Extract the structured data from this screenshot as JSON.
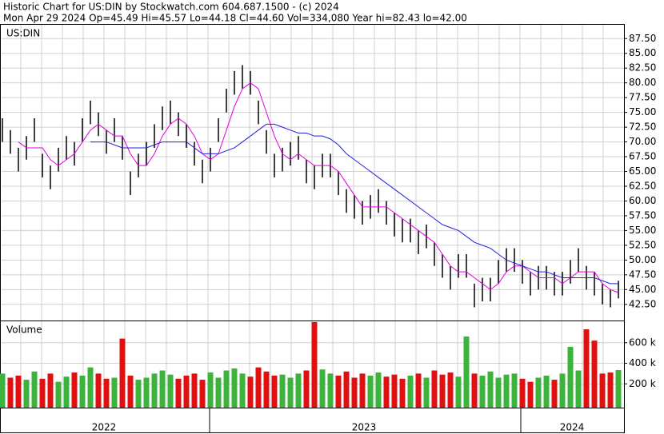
{
  "chart_data": {
    "type": "hilo",
    "title": "Historic Chart for US:DIN by Stockwatch.com 604.687.1500 - (c) 2024",
    "subtitle": "Mon Apr 29 2024  Op=45.49  Hi=45.57  Lo=44.18  Cl=44.60  Vol=334,080  Year hi=82.43  lo=42.00",
    "symbol": "US:DIN",
    "volume_title": "Volume",
    "periods": [
      "2022",
      "2023",
      "2024"
    ],
    "high": [
      74,
      72,
      69,
      71,
      74,
      68,
      66,
      69,
      71,
      70,
      74,
      77,
      75,
      72,
      74,
      71,
      65,
      68,
      70,
      73,
      76,
      77,
      75,
      73,
      70,
      67,
      69,
      74,
      79,
      82,
      83,
      82,
      77,
      72,
      68,
      69,
      70,
      71,
      67,
      66,
      68,
      68,
      65,
      62,
      61,
      60,
      61,
      62,
      60,
      58,
      57,
      57,
      55,
      56,
      53,
      51,
      49,
      51,
      51,
      46,
      47,
      47,
      50,
      52,
      52,
      50,
      48,
      49,
      49,
      48,
      48,
      50,
      52,
      49,
      48,
      46,
      45,
      46.5
    ],
    "low": [
      70,
      68,
      65,
      67,
      70,
      64,
      62,
      65,
      67,
      66,
      70,
      73,
      71,
      68,
      70,
      67,
      61,
      64,
      66,
      69,
      72,
      73,
      71,
      69,
      66,
      63,
      65,
      70,
      75,
      78,
      79,
      78,
      73,
      68,
      64,
      65,
      66,
      67,
      63,
      62,
      64,
      64,
      61,
      58,
      57,
      56,
      57,
      58,
      56,
      54,
      53,
      53,
      51,
      52,
      49,
      47,
      45,
      47,
      47,
      42,
      43,
      43,
      46,
      48,
      48,
      46,
      44,
      45,
      45,
      44,
      44,
      46,
      48,
      45,
      44,
      42.5,
      42,
      43.5
    ],
    "series": [
      {
        "name": "MA short",
        "color": "#e000e0",
        "values": [
          null,
          null,
          70,
          69,
          69,
          69,
          67,
          66,
          67,
          68,
          70,
          72,
          73,
          72,
          71,
          71,
          68,
          66,
          66,
          68,
          71,
          73,
          74,
          73,
          71,
          68,
          67,
          68,
          72,
          76,
          79,
          80,
          79,
          75,
          71,
          68,
          67,
          68,
          67,
          66,
          66,
          66,
          65,
          63,
          61,
          59,
          59,
          59,
          59,
          58,
          57,
          56,
          55,
          54,
          53,
          51,
          49,
          48,
          48,
          47,
          46,
          45,
          46,
          48,
          49,
          49,
          48,
          47,
          47,
          47,
          46,
          47,
          48,
          48,
          48,
          46,
          45,
          44.5
        ]
      },
      {
        "name": "MA long",
        "color": "#2020e0",
        "values": [
          null,
          null,
          null,
          null,
          null,
          null,
          null,
          null,
          null,
          null,
          null,
          70,
          70,
          70,
          69.5,
          69,
          69,
          69,
          69,
          69.5,
          70,
          70,
          70,
          70,
          69,
          68,
          68,
          68,
          68.5,
          69,
          70,
          71,
          72,
          73,
          73,
          72.5,
          72,
          71.5,
          71.5,
          71,
          71,
          70.5,
          69.5,
          68,
          67,
          66,
          65,
          64,
          63,
          62,
          61,
          60,
          59,
          58,
          57,
          56,
          55.5,
          55,
          54,
          53,
          52.5,
          52,
          51,
          50,
          49.5,
          49,
          48.5,
          48,
          48,
          47.5,
          47,
          47,
          47,
          47,
          47,
          46.5,
          46,
          46
        ]
      }
    ],
    "volume": [
      300000,
      260000,
      280000,
      240000,
      320000,
      250000,
      300000,
      220000,
      270000,
      310000,
      280000,
      360000,
      300000,
      250000,
      260000,
      640000,
      280000,
      240000,
      260000,
      300000,
      330000,
      290000,
      250000,
      280000,
      300000,
      240000,
      310000,
      260000,
      330000,
      350000,
      300000,
      270000,
      360000,
      320000,
      280000,
      290000,
      260000,
      300000,
      330000,
      800000,
      340000,
      300000,
      280000,
      320000,
      260000,
      300000,
      280000,
      310000,
      270000,
      290000,
      250000,
      280000,
      300000,
      260000,
      330000,
      290000,
      310000,
      270000,
      660000,
      300000,
      280000,
      320000,
      260000,
      290000,
      300000,
      250000,
      220000,
      260000,
      280000,
      240000,
      300000,
      560000,
      330000,
      730000,
      620000,
      300000,
      310000,
      334080
    ],
    "up_color": "#3cb43c",
    "down_color": "#e01010",
    "ylim": [
      39.9,
      89.7
    ],
    "yticks": [
      {
        "value": 42.5,
        "label": "42.50"
      },
      {
        "value": 45,
        "label": "45.00"
      },
      {
        "value": 47.5,
        "label": "47.50"
      },
      {
        "value": 50,
        "label": "50.00"
      },
      {
        "value": 52.5,
        "label": "52.50"
      },
      {
        "value": 55,
        "label": "55.00"
      },
      {
        "value": 57.5,
        "label": "57.50"
      },
      {
        "value": 60,
        "label": "60.00"
      },
      {
        "value": 62.5,
        "label": "62.50"
      },
      {
        "value": 65,
        "label": "65.00"
      },
      {
        "value": 67.5,
        "label": "67.50"
      },
      {
        "value": 70,
        "label": "70.00"
      },
      {
        "value": 72.5,
        "label": "72.50"
      },
      {
        "value": 75,
        "label": "75.00"
      },
      {
        "value": 77.5,
        "label": "77.50"
      },
      {
        "value": 80,
        "label": "80.00"
      },
      {
        "value": 82.5,
        "label": "82.50"
      },
      {
        "value": 85,
        "label": "85.00"
      },
      {
        "value": 87.5,
        "label": "87.50"
      }
    ],
    "y2lim": [
      0,
      800000
    ],
    "y2ticks": [
      {
        "value": 200000,
        "label": "200 k"
      },
      {
        "value": 400000,
        "label": "400 k"
      },
      {
        "value": 600000,
        "label": "600 k"
      }
    ],
    "bar_color": "#000000",
    "grid": true
  }
}
